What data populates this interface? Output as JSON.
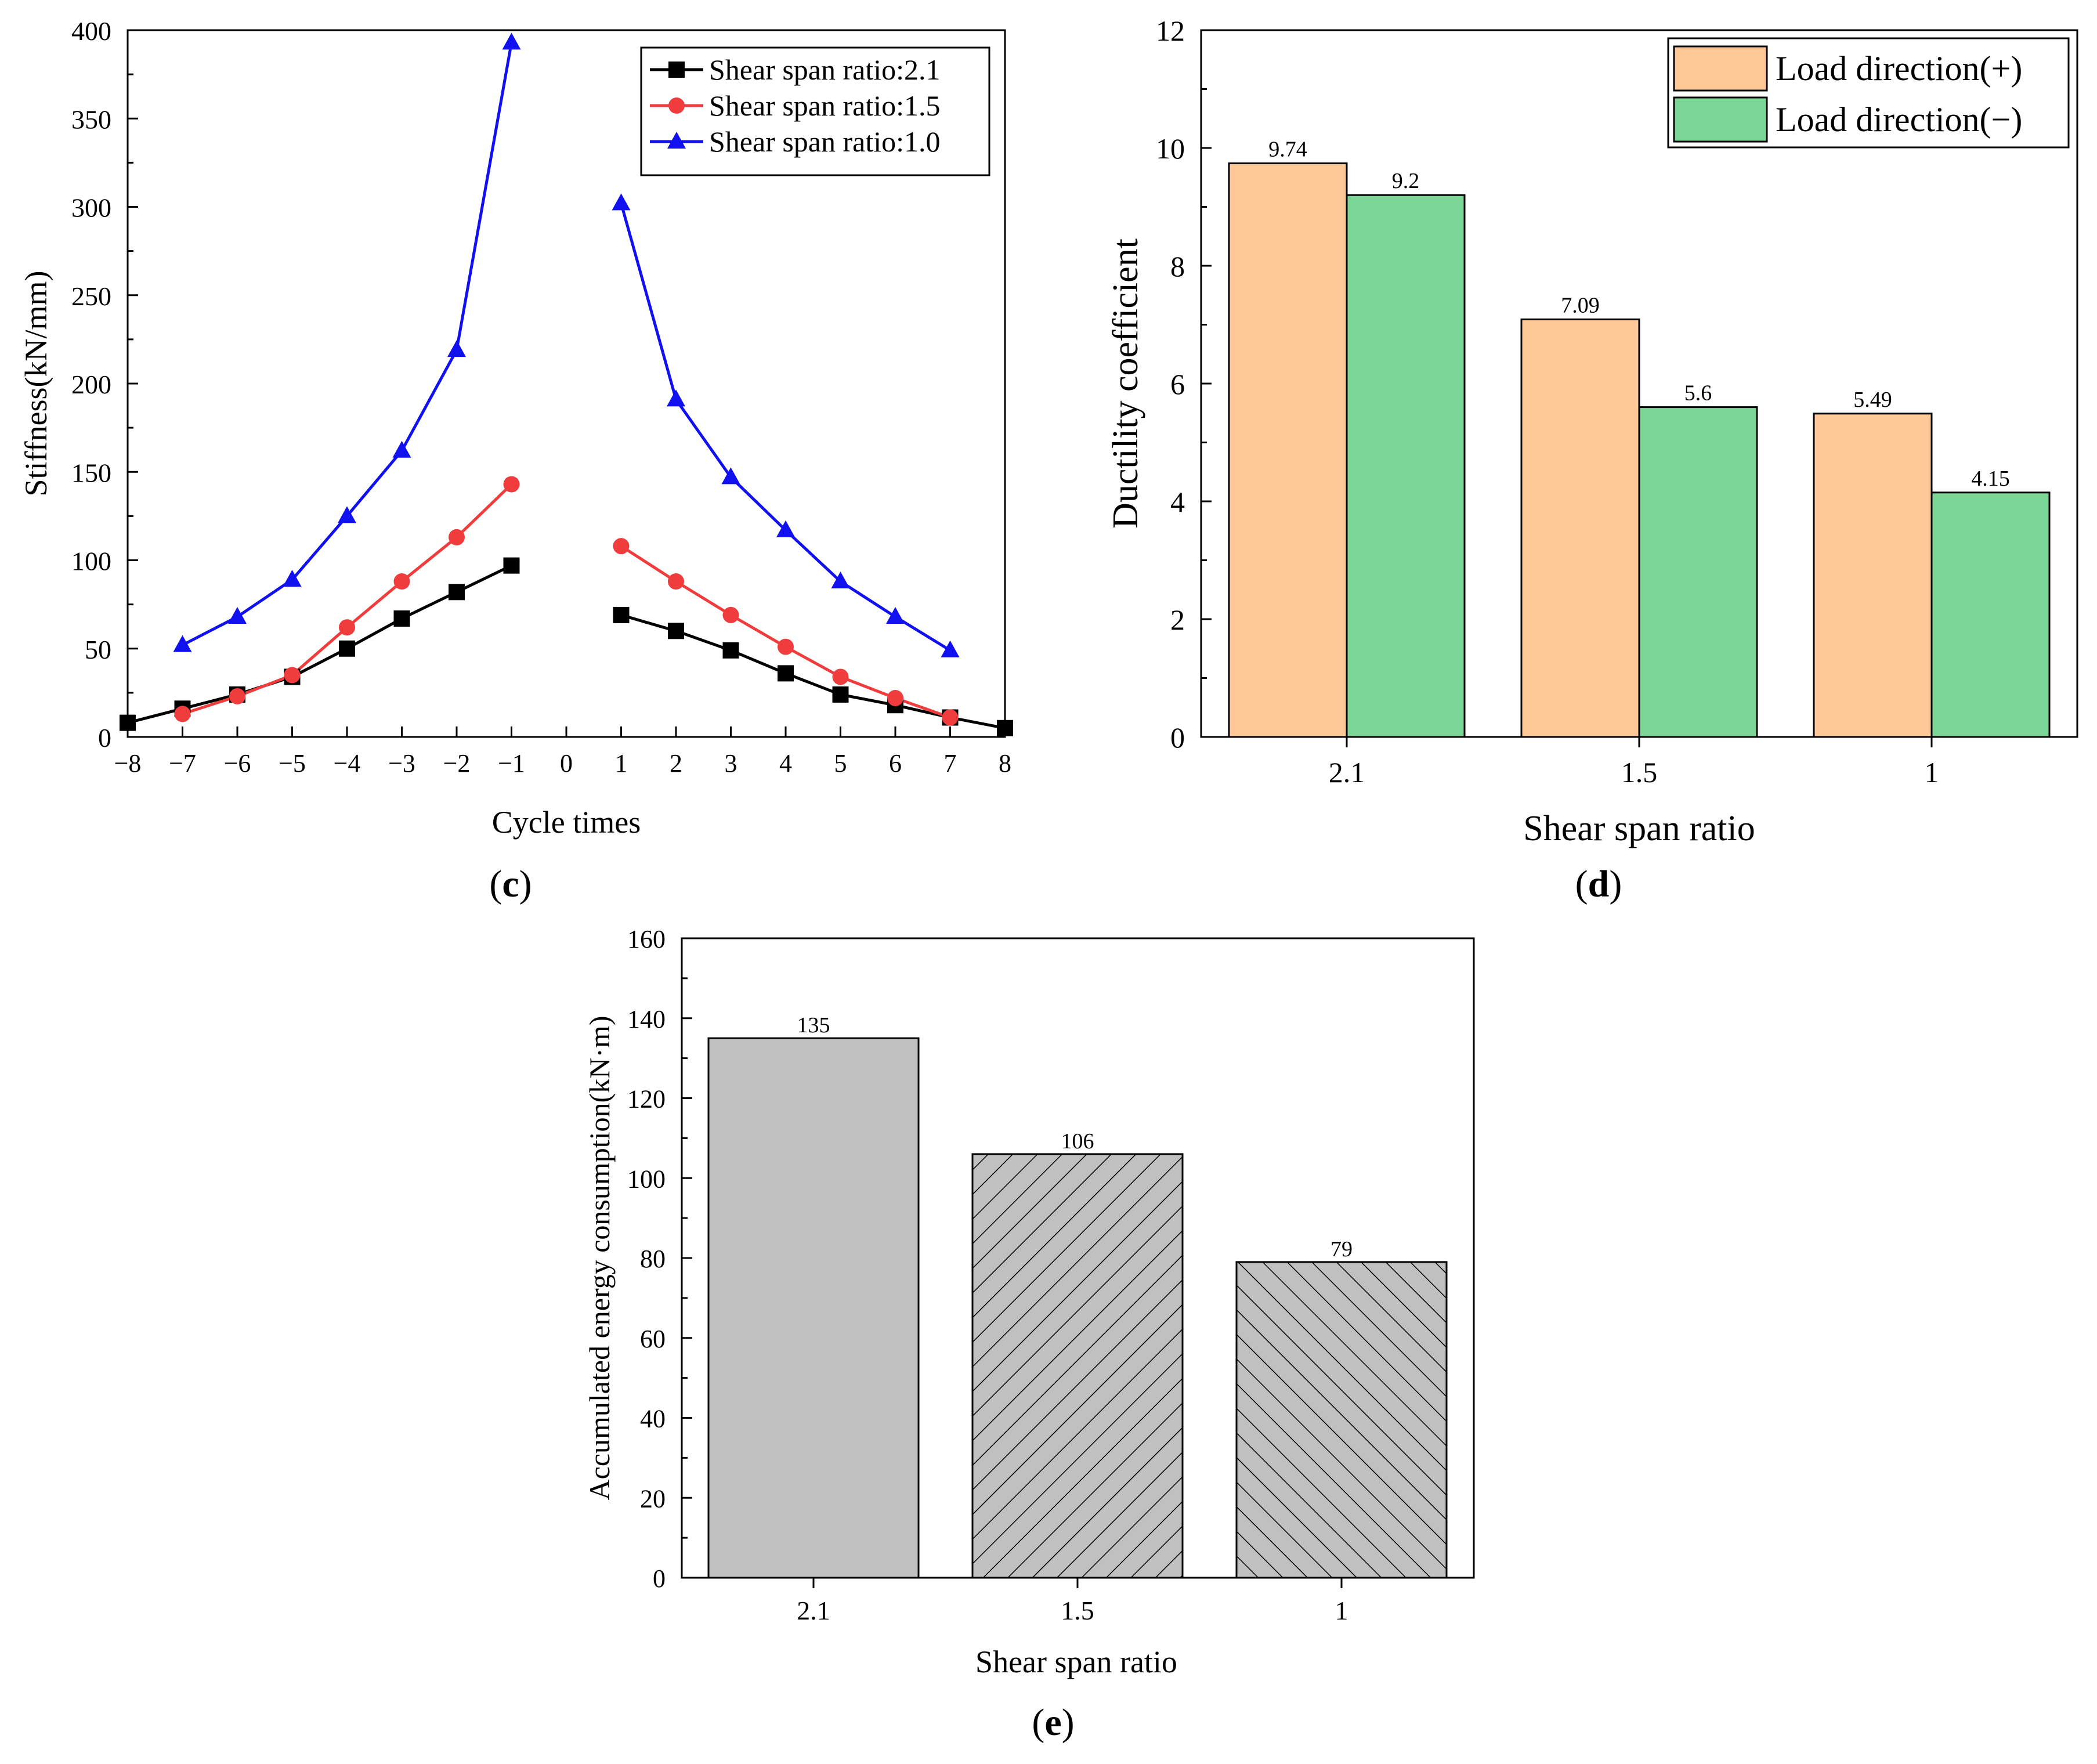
{
  "colors": {
    "black": "#000000",
    "red": "#f03c3c",
    "blue": "#1010f0",
    "orange": "#ffc896",
    "green": "#7cd696",
    "gray": "#c0c0c0"
  },
  "chart_data": [
    {
      "panel": "(c)",
      "panel_letter": "c",
      "type": "line",
      "title": "",
      "xlabel": "Cycle times",
      "ylabel": "Stiffness(kN/mm)",
      "xlim": [
        -8,
        8
      ],
      "ylim": [
        0,
        400
      ],
      "xticks": [
        "−8",
        "−7",
        "−6",
        "−5",
        "−4",
        "−3",
        "−2",
        "−1",
        "0",
        "1",
        "2",
        "3",
        "4",
        "5",
        "6",
        "7",
        "8"
      ],
      "yticks": [
        "0",
        "50",
        "100",
        "150",
        "200",
        "250",
        "300",
        "350",
        "400"
      ],
      "legend_position": "top-right",
      "series": [
        {
          "name": "Shear span ratio:2.1",
          "marker": "square",
          "color": "#000000",
          "segments": [
            [
              [
                -8,
                8
              ],
              [
                -7,
                16
              ],
              [
                -6,
                24
              ],
              [
                -5,
                34
              ],
              [
                -4,
                50
              ],
              [
                -3,
                67
              ],
              [
                -2,
                82
              ],
              [
                -1,
                97
              ]
            ],
            [
              [
                1,
                69
              ],
              [
                2,
                60
              ],
              [
                3,
                49
              ],
              [
                4,
                36
              ],
              [
                5,
                24
              ],
              [
                6,
                18
              ],
              [
                7,
                11
              ],
              [
                8,
                5
              ]
            ]
          ]
        },
        {
          "name": "Shear span ratio:1.5",
          "marker": "circle",
          "color": "#f03c3c",
          "segments": [
            [
              [
                -7,
                13
              ],
              [
                -6,
                23
              ],
              [
                -5,
                35
              ],
              [
                -4,
                62
              ],
              [
                -3,
                88
              ],
              [
                -2,
                113
              ],
              [
                -1,
                143
              ]
            ],
            [
              [
                1,
                108
              ],
              [
                2,
                88
              ],
              [
                3,
                69
              ],
              [
                4,
                51
              ],
              [
                5,
                34
              ],
              [
                6,
                22
              ],
              [
                7,
                11
              ]
            ]
          ]
        },
        {
          "name": "Shear span ratio:1.0",
          "marker": "triangle",
          "color": "#1010f0",
          "segments": [
            [
              [
                -7,
                52
              ],
              [
                -6,
                68
              ],
              [
                -5,
                89
              ],
              [
                -4,
                125
              ],
              [
                -3,
                162
              ],
              [
                -2,
                219
              ],
              [
                -1,
                393
              ]
            ],
            [
              [
                1,
                302
              ],
              [
                2,
                191
              ],
              [
                3,
                147
              ],
              [
                4,
                117
              ],
              [
                5,
                88
              ],
              [
                6,
                68
              ],
              [
                7,
                49
              ]
            ]
          ]
        }
      ]
    },
    {
      "panel": "(d)",
      "panel_letter": "d",
      "type": "bar",
      "title": "",
      "xlabel": "Shear span ratio",
      "ylabel": "Ductility coefficient",
      "categories": [
        "2.1",
        "1.5",
        "1"
      ],
      "ylim": [
        0,
        12
      ],
      "yticks": [
        "0",
        "2",
        "4",
        "6",
        "8",
        "10",
        "12"
      ],
      "legend_position": "top-right",
      "series": [
        {
          "name": "Load direction(+)",
          "color": "#ffc896",
          "values": [
            9.74,
            7.09,
            5.49
          ],
          "labels": [
            "9.74",
            "7.09",
            "5.49"
          ]
        },
        {
          "name": "Load direction(−)",
          "color": "#7cd696",
          "values": [
            9.2,
            5.6,
            4.15
          ],
          "labels": [
            "9.2",
            "5.6",
            "4.15"
          ]
        }
      ]
    },
    {
      "panel": "(e)",
      "panel_letter": "e",
      "type": "bar",
      "title": "",
      "xlabel": "Shear span ratio",
      "ylabel": "Accumulated energy consumption(kN·m)",
      "categories": [
        "2.1",
        "1.5",
        "1"
      ],
      "ylim": [
        0,
        160
      ],
      "yticks": [
        "0",
        "20",
        "40",
        "60",
        "80",
        "100",
        "120",
        "140",
        "160"
      ],
      "series": [
        {
          "name": "Accumulated energy consumption",
          "values": [
            135,
            106,
            79
          ],
          "labels": [
            "135",
            "106",
            "79"
          ],
          "fills": [
            "solid",
            "hatch-right",
            "hatch-left"
          ]
        }
      ]
    }
  ]
}
